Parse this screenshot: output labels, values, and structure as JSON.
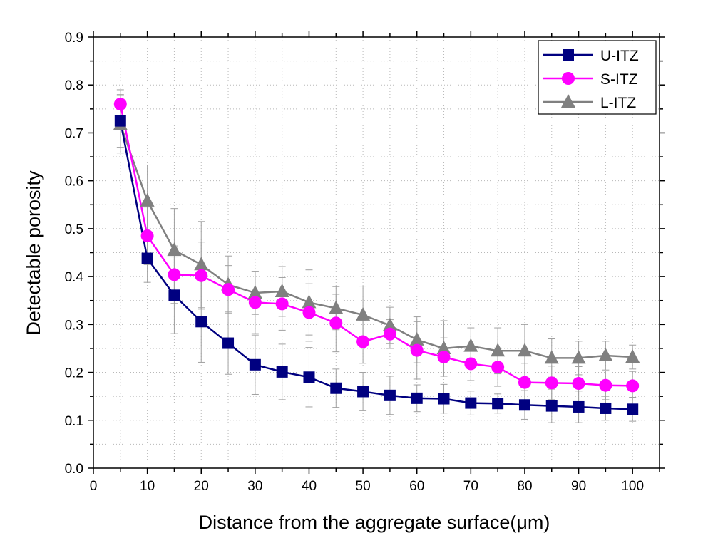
{
  "chart_data": {
    "type": "line",
    "title": "",
    "xlabel": "Distance from the aggregate surface(μm)",
    "ylabel": "Detectable porosity",
    "xlim": [
      0,
      105
    ],
    "ylim": [
      0,
      0.9
    ],
    "x_ticks": [
      "0",
      "10",
      "20",
      "30",
      "40",
      "50",
      "60",
      "70",
      "80",
      "90",
      "100"
    ],
    "y_ticks": [
      "0.0",
      "0.1",
      "0.2",
      "0.3",
      "0.4",
      "0.5",
      "0.6",
      "0.7",
      "0.8",
      "0.9"
    ],
    "grid": true,
    "legend_position": "top-right",
    "x": [
      5,
      10,
      15,
      20,
      25,
      30,
      35,
      40,
      45,
      50,
      55,
      60,
      65,
      70,
      75,
      80,
      85,
      90,
      95,
      100
    ],
    "series": [
      {
        "name": "U-ITZ",
        "color": "#000080",
        "marker": "square",
        "values": [
          0.725,
          0.438,
          0.361,
          0.306,
          0.261,
          0.216,
          0.201,
          0.19,
          0.167,
          0.16,
          0.152,
          0.146,
          0.145,
          0.136,
          0.135,
          0.132,
          0.13,
          0.128,
          0.125,
          0.123
        ],
        "errors": [
          0.055,
          0.05,
          0.08,
          0.085,
          0.065,
          0.062,
          0.058,
          0.062,
          0.04,
          0.04,
          0.04,
          0.028,
          0.03,
          0.025,
          0.02,
          0.03,
          0.035,
          0.033,
          0.025,
          0.025
        ]
      },
      {
        "name": "S-ITZ",
        "color": "#FF00FF",
        "marker": "circle",
        "values": [
          0.76,
          0.485,
          0.404,
          0.402,
          0.373,
          0.346,
          0.343,
          0.325,
          0.303,
          0.264,
          0.28,
          0.246,
          0.232,
          0.218,
          0.211,
          0.179,
          0.178,
          0.177,
          0.173,
          0.172
        ],
        "errors": [
          0.03,
          0.06,
          0.06,
          0.07,
          0.05,
          0.065,
          0.055,
          0.06,
          0.06,
          0.045,
          0.03,
          0.06,
          0.04,
          0.035,
          0.04,
          0.04,
          0.035,
          0.035,
          0.03,
          0.03
        ]
      },
      {
        "name": "L-ITZ",
        "color": "#808080",
        "marker": "triangle",
        "values": [
          0.718,
          0.558,
          0.455,
          0.425,
          0.383,
          0.366,
          0.369,
          0.346,
          0.334,
          0.32,
          0.298,
          0.268,
          0.25,
          0.255,
          0.245,
          0.245,
          0.23,
          0.23,
          0.235,
          0.232
        ],
        "errors": [
          0.06,
          0.075,
          0.087,
          0.09,
          0.06,
          0.045,
          0.052,
          0.068,
          0.045,
          0.06,
          0.038,
          0.048,
          0.058,
          0.038,
          0.048,
          0.055,
          0.04,
          0.035,
          0.03,
          0.025
        ]
      }
    ]
  }
}
